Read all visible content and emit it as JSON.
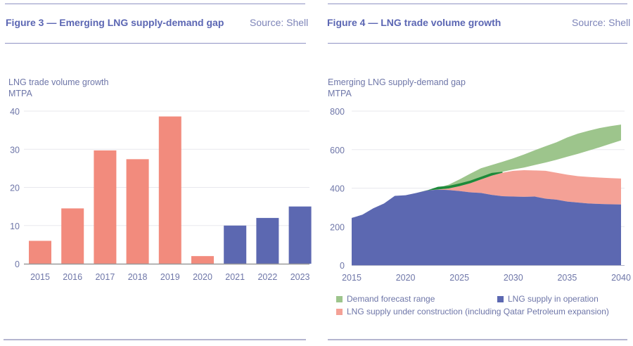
{
  "figures": [
    {
      "title": "Figure 3 — Emerging LNG supply-demand gap",
      "source": "Source: Shell",
      "ylabel_line1": "LNG trade volume growth",
      "ylabel_line2": "MTPA"
    },
    {
      "title": "Figure 4 — LNG trade volume growth",
      "source": "Source: Shell",
      "ylabel_line1": "Emerging LNG supply-demand gap",
      "ylabel_line2": "MTPA"
    }
  ],
  "colors": {
    "salmon": "#f28b7d",
    "blue": "#5c68b1",
    "green_light": "#9dc58c",
    "green_dark": "#1e8a3a",
    "salmon_light": "#f4a196",
    "axis_text": "#6e76a8",
    "grid": "#e8e8ee",
    "baseline": "#9a9a9a"
  },
  "chart_data": [
    {
      "type": "bar",
      "title": "Figure 3 — Emerging LNG supply-demand gap",
      "ylabel": "LNG trade volume growth, MTPA",
      "xlabel": "",
      "categories": [
        "2015",
        "2016",
        "2017",
        "2018",
        "2019",
        "2020",
        "2021",
        "2022",
        "2023"
      ],
      "values": [
        6,
        14.5,
        29.7,
        27.4,
        38.6,
        2,
        10,
        12,
        15
      ],
      "bar_colors": [
        "salmon",
        "salmon",
        "salmon",
        "salmon",
        "salmon",
        "salmon",
        "blue",
        "blue",
        "blue"
      ],
      "ylim": [
        0,
        40
      ],
      "yticks": [
        0,
        10,
        20,
        30,
        40
      ],
      "grid": true
    },
    {
      "type": "area",
      "title": "Figure 4 — LNG trade volume growth",
      "ylabel": "Emerging LNG supply-demand gap, MTPA",
      "xlabel": "",
      "xlim": [
        2015,
        2040
      ],
      "ylim": [
        0,
        800
      ],
      "xticks": [
        2015,
        2020,
        2025,
        2030,
        2035,
        2040
      ],
      "yticks": [
        0,
        200,
        400,
        600,
        800
      ],
      "grid": true,
      "x": [
        2015,
        2016,
        2017,
        2018,
        2019,
        2020,
        2021,
        2022,
        2023,
        2024,
        2025,
        2026,
        2027,
        2028,
        2029,
        2030,
        2031,
        2032,
        2033,
        2034,
        2035,
        2036,
        2037,
        2038,
        2039,
        2040
      ],
      "series": [
        {
          "name": "LNG supply in operation",
          "color_key": "blue",
          "values": [
            245,
            262,
            295,
            320,
            360,
            363,
            375,
            388,
            392,
            390,
            385,
            378,
            375,
            365,
            358,
            356,
            355,
            356,
            345,
            340,
            330,
            325,
            320,
            318,
            316,
            315
          ]
        },
        {
          "name": "LNG supply under construction (including Qatar Petroleum expansion)",
          "color_key": "salmon_light",
          "total_values": [
            245,
            262,
            295,
            320,
            360,
            363,
            375,
            388,
            393,
            398,
            410,
            425,
            445,
            465,
            480,
            490,
            493,
            492,
            490,
            480,
            470,
            462,
            458,
            455,
            452,
            450
          ]
        },
        {
          "name": "Demand forecast range",
          "color_key": "green_light",
          "low_values": [
            245,
            262,
            295,
            320,
            360,
            363,
            375,
            388,
            393,
            400,
            412,
            430,
            452,
            470,
            485,
            497,
            507,
            520,
            533,
            547,
            563,
            578,
            595,
            612,
            630,
            648
          ],
          "high_values": [
            245,
            262,
            295,
            320,
            360,
            363,
            375,
            390,
            400,
            418,
            445,
            475,
            503,
            520,
            537,
            555,
            575,
            597,
            618,
            638,
            663,
            683,
            698,
            712,
            722,
            730
          ]
        }
      ],
      "overlap_band": {
        "name": "Demand low edge below construction supply",
        "color_key": "green_dark",
        "x_range": [
          2022,
          2029
        ]
      },
      "legend": [
        {
          "label": "Demand forecast range",
          "color_key": "green_light"
        },
        {
          "label": "LNG supply in operation",
          "color_key": "blue"
        },
        {
          "label": "LNG supply under construction (including Qatar Petroleum expansion)",
          "color_key": "salmon_light"
        }
      ],
      "legend_position": "bottom"
    }
  ]
}
